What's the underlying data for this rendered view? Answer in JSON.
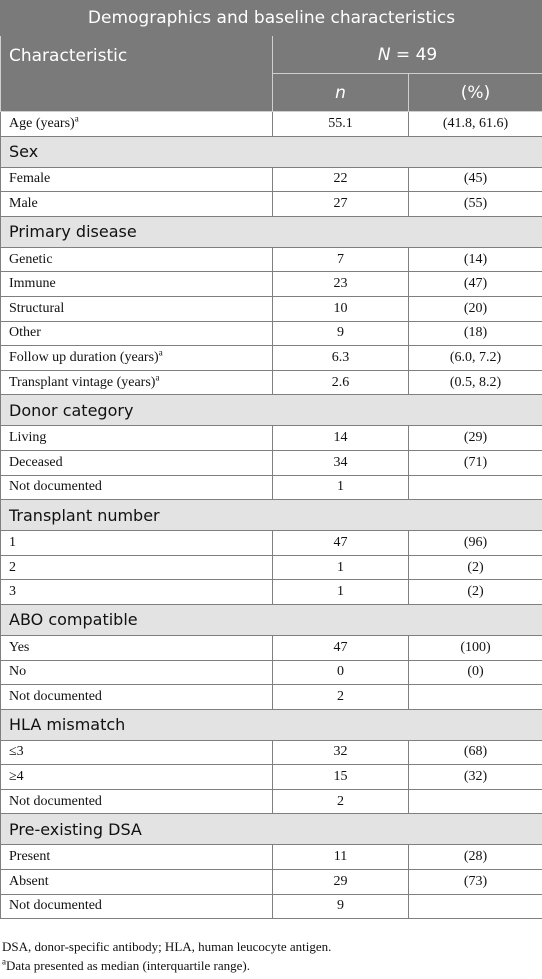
{
  "table": {
    "title": "Demographics and baseline characteristics",
    "header": {
      "characteristic": "Characteristic",
      "n_total_label": "N",
      "n_total_value": " = 49",
      "n_col": "n",
      "pct_col": "(%)"
    },
    "rows": [
      {
        "type": "data",
        "label": "Age (years)",
        "sup": "a",
        "n": "55.1",
        "pct": "(41.8, 61.6)"
      },
      {
        "type": "section",
        "label": "Sex"
      },
      {
        "type": "data",
        "label": "Female",
        "n": "22",
        "pct": "(45)"
      },
      {
        "type": "data",
        "label": "Male",
        "n": "27",
        "pct": "(55)"
      },
      {
        "type": "section",
        "label": "Primary disease"
      },
      {
        "type": "data",
        "label": "Genetic",
        "n": "7",
        "pct": "(14)"
      },
      {
        "type": "data",
        "label": "Immune",
        "n": "23",
        "pct": "(47)"
      },
      {
        "type": "data",
        "label": "Structural",
        "n": "10",
        "pct": "(20)"
      },
      {
        "type": "data",
        "label": "Other",
        "n": "9",
        "pct": "(18)"
      },
      {
        "type": "data",
        "label": "Follow up duration (years)",
        "sup": "a",
        "n": "6.3",
        "pct": "(6.0, 7.2)"
      },
      {
        "type": "data",
        "label": "Transplant vintage (years)",
        "sup": "a",
        "n": "2.6",
        "pct": "(0.5, 8.2)"
      },
      {
        "type": "section",
        "label": "Donor category"
      },
      {
        "type": "data",
        "label": "Living",
        "n": "14",
        "pct": "(29)"
      },
      {
        "type": "data",
        "label": "Deceased",
        "n": "34",
        "pct": "(71)"
      },
      {
        "type": "data",
        "label": "Not documented",
        "n": "1",
        "pct": ""
      },
      {
        "type": "section",
        "label": "Transplant number"
      },
      {
        "type": "data",
        "label": "1",
        "n": "47",
        "pct": "(96)"
      },
      {
        "type": "data",
        "label": "2",
        "n": "1",
        "pct": "(2)"
      },
      {
        "type": "data",
        "label": "3",
        "n": "1",
        "pct": "(2)"
      },
      {
        "type": "section",
        "label": "ABO compatible"
      },
      {
        "type": "data",
        "label": "Yes",
        "n": "47",
        "pct": "(100)"
      },
      {
        "type": "data",
        "label": "No",
        "n": "0",
        "pct": "(0)"
      },
      {
        "type": "data",
        "label": "Not documented",
        "n": "2",
        "pct": ""
      },
      {
        "type": "section",
        "label": "HLA mismatch"
      },
      {
        "type": "data",
        "label": "≤3",
        "n": "32",
        "pct": "(68)"
      },
      {
        "type": "data",
        "label": "≥4",
        "n": "15",
        "pct": "(32)"
      },
      {
        "type": "data",
        "label": "Not documented",
        "n": "2",
        "pct": ""
      },
      {
        "type": "section",
        "label": "Pre-existing DSA"
      },
      {
        "type": "data",
        "label": "Present",
        "n": "11",
        "pct": "(28)"
      },
      {
        "type": "data",
        "label": "Absent",
        "n": "29",
        "pct": "(73)"
      },
      {
        "type": "data",
        "label": "Not documented",
        "n": "9",
        "pct": ""
      }
    ]
  },
  "footnotes": {
    "abbrev": "DSA, donor-specific antibody; HLA, human leucocyte antigen.",
    "a_mark": "a",
    "a_text": "Data presented as median (interquartile range)."
  }
}
